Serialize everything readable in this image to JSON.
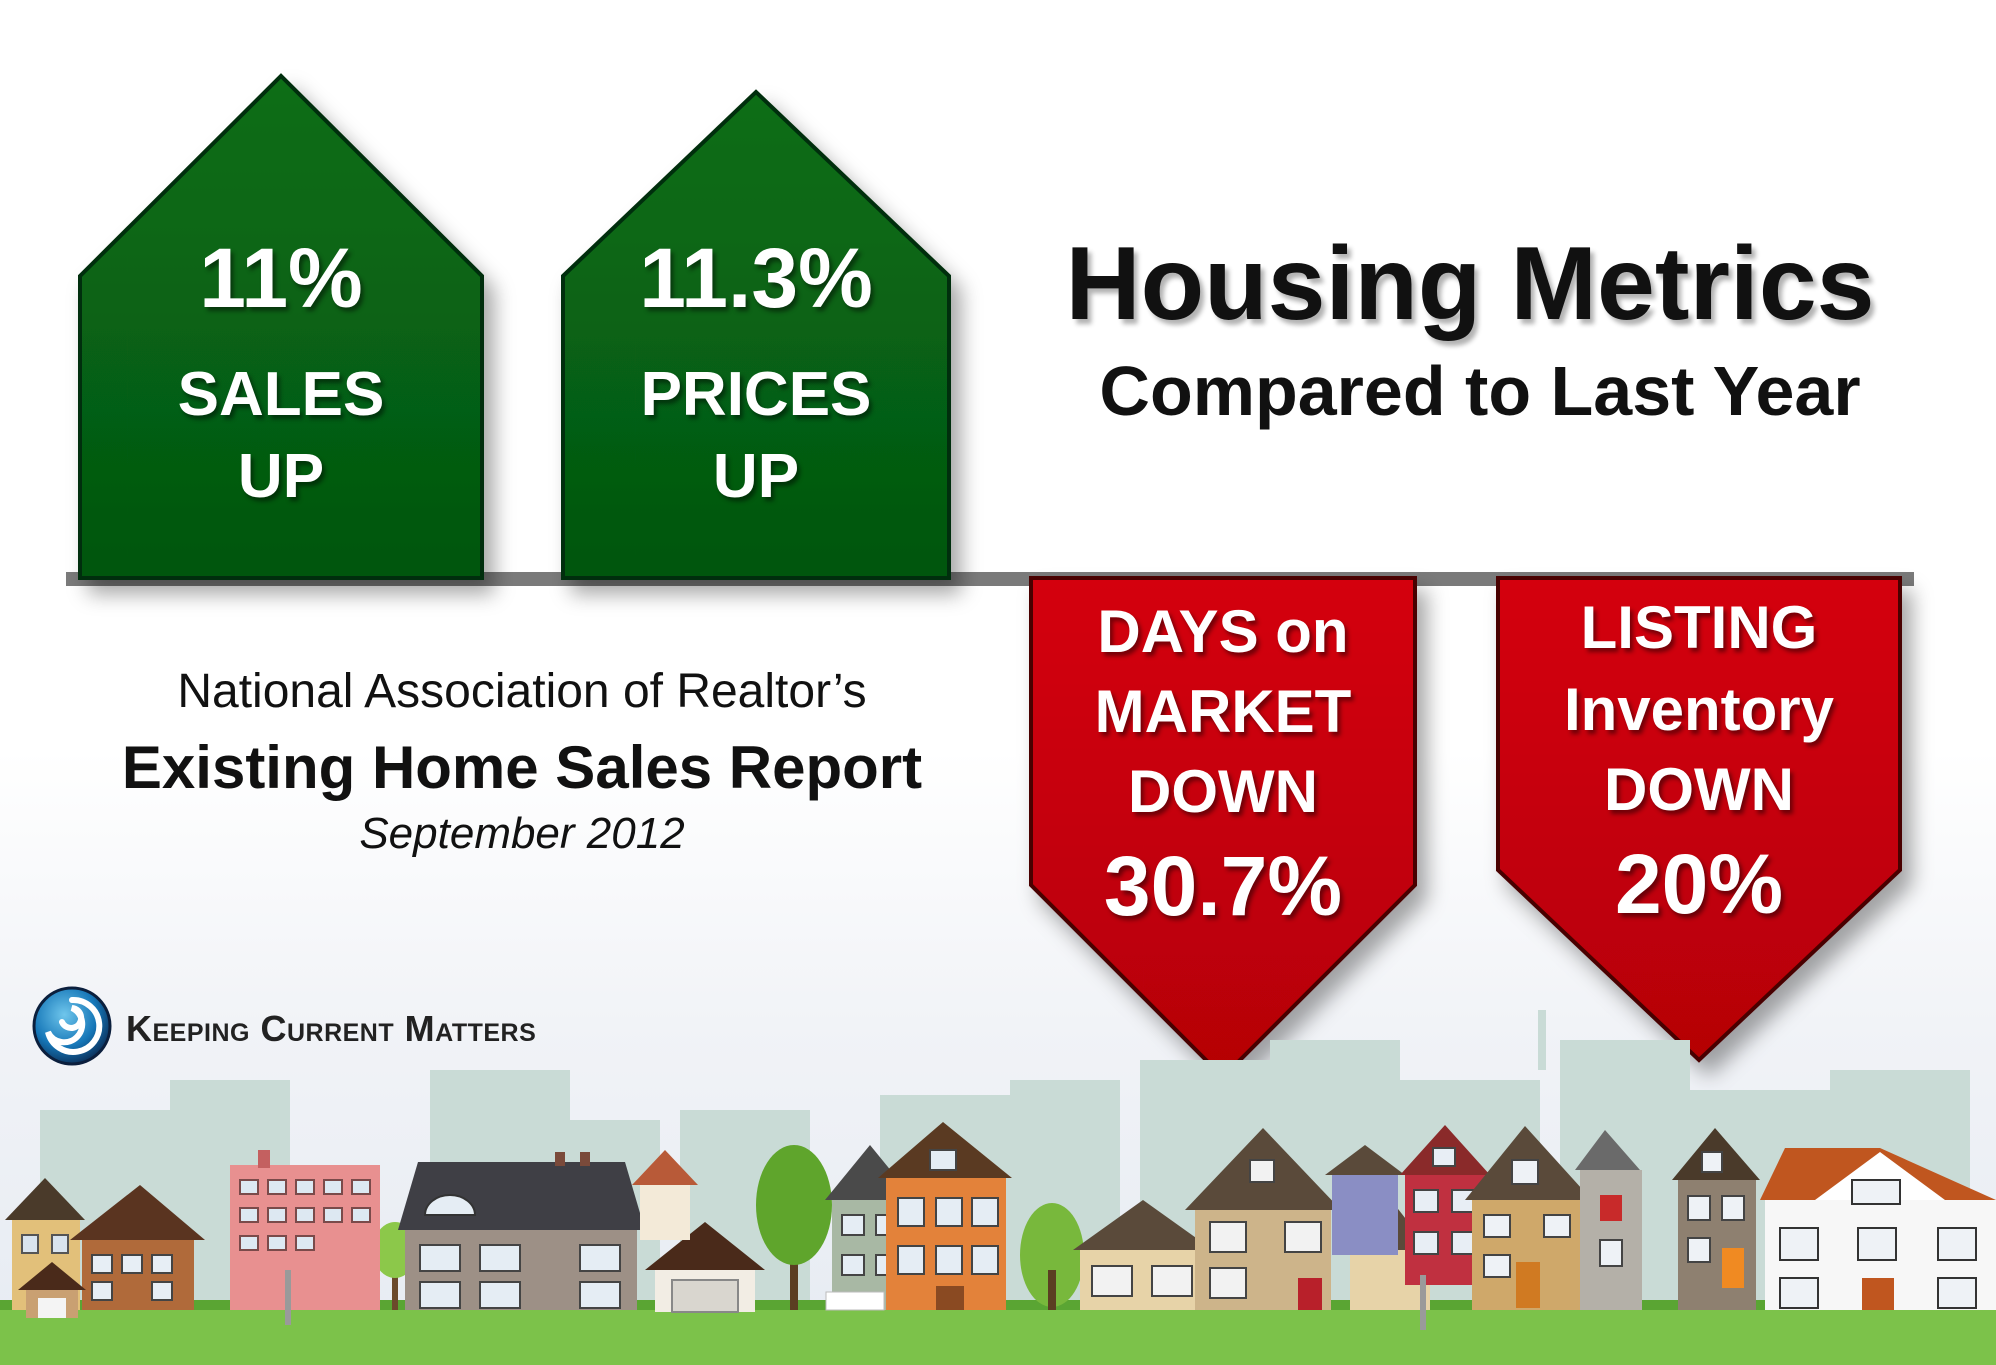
{
  "title": {
    "main": "Housing Metrics",
    "sub": "Compared to Last Year"
  },
  "metrics_up": [
    {
      "value": "11%",
      "line1": "SALES",
      "line2": "UP"
    },
    {
      "value": "11.3%",
      "line1": "PRICES",
      "line2": "UP"
    }
  ],
  "metrics_down": [
    {
      "line1": "DAYS on",
      "line2": "MARKET",
      "line3": "DOWN",
      "value": "30.7%"
    },
    {
      "line1": "LISTING",
      "line2": "Inventory",
      "line3": "DOWN",
      "value": "20%"
    }
  ],
  "report": {
    "org": "National Association of Realtor’s",
    "name": "Existing Home Sales Report",
    "date": "September 2012"
  },
  "brand": {
    "name": "Keeping Current Matters"
  },
  "colors": {
    "up_green": "#056312",
    "down_red": "#c80008",
    "baseline": "#7a7a7a"
  }
}
